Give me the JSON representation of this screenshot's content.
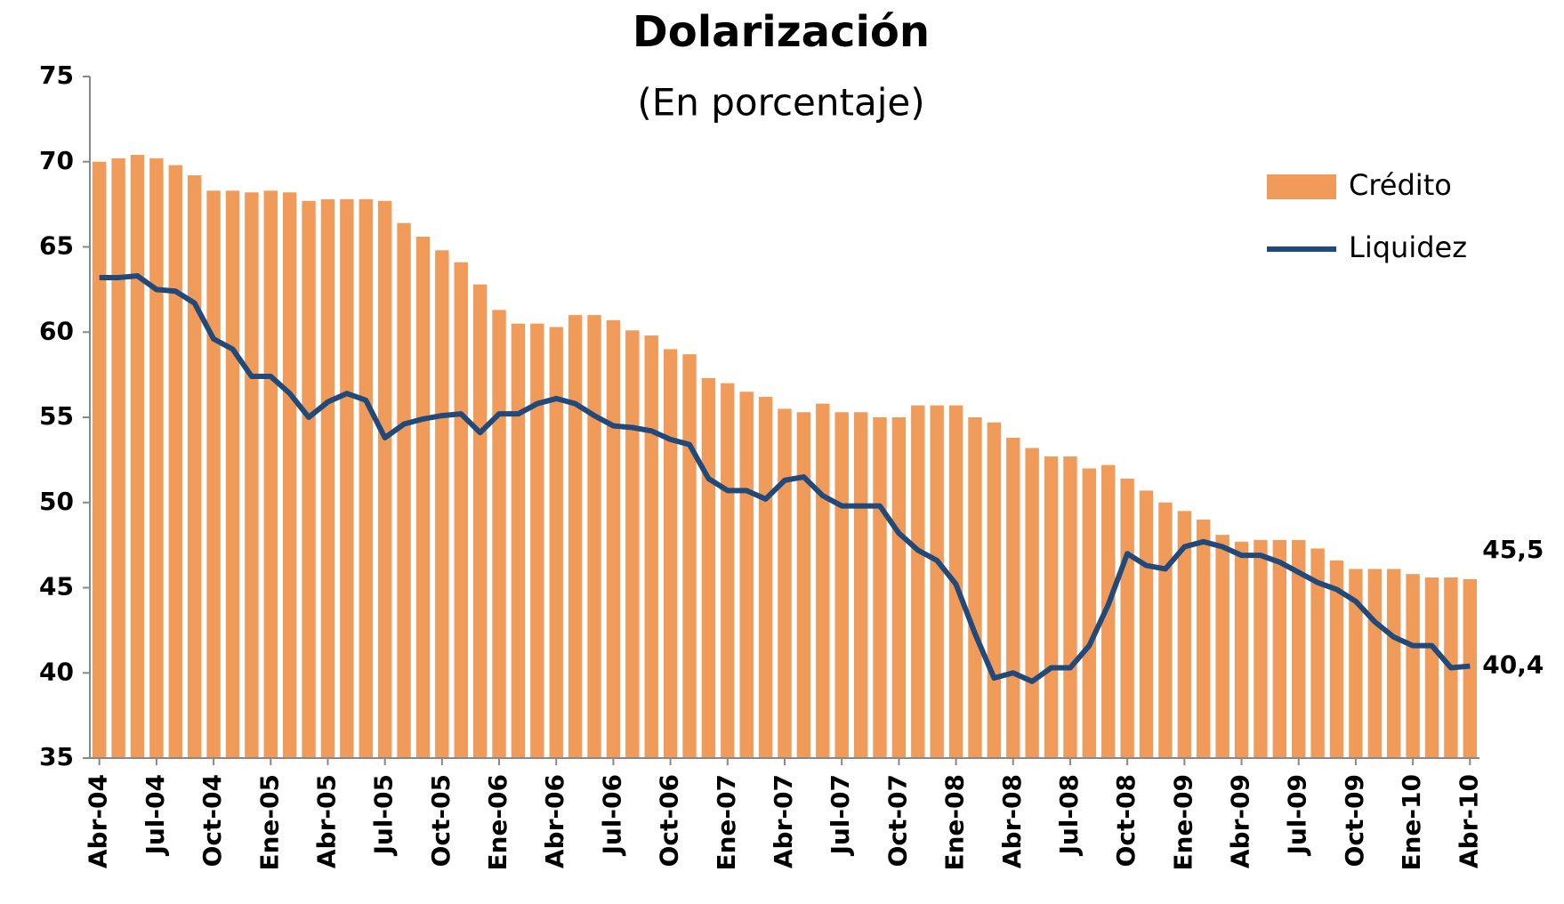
{
  "chart_data": {
    "type": "bar_line",
    "title": "Dolarización",
    "subtitle": "(En porcentaje)",
    "categories": [
      "Abr-04",
      null,
      null,
      "Jul-04",
      null,
      null,
      "Oct-04",
      null,
      null,
      "Ene-05",
      null,
      null,
      "Abr-05",
      null,
      null,
      "Jul-05",
      null,
      null,
      "Oct-05",
      null,
      null,
      "Ene-06",
      null,
      null,
      "Abr-06",
      null,
      null,
      "Jul-06",
      null,
      null,
      "Oct-06",
      null,
      null,
      "Ene-07",
      null,
      null,
      "Abr-07",
      null,
      null,
      "Jul-07",
      null,
      null,
      "Oct-07",
      null,
      null,
      "Ene-08",
      null,
      null,
      "Abr-08",
      null,
      null,
      "Jul-08",
      null,
      null,
      "Oct-08",
      null,
      null,
      "Ene-09",
      null,
      null,
      "Abr-09",
      null,
      null,
      "Jul-09",
      null,
      null,
      "Oct-09",
      null,
      null,
      "Ene-10",
      null,
      null,
      "Abr-10"
    ],
    "series": [
      {
        "name": "Crédito",
        "type": "bar",
        "color": "#f09b59",
        "values": [
          70.0,
          70.2,
          70.4,
          70.2,
          69.8,
          69.2,
          68.3,
          68.3,
          68.2,
          68.3,
          68.2,
          67.7,
          67.8,
          67.8,
          67.8,
          67.7,
          66.4,
          65.6,
          64.8,
          64.1,
          62.8,
          61.3,
          60.5,
          60.5,
          60.3,
          61.0,
          61.0,
          60.7,
          60.1,
          59.8,
          59.0,
          58.7,
          57.3,
          57.0,
          56.5,
          56.2,
          55.5,
          55.3,
          55.8,
          55.3,
          55.3,
          55.0,
          55.0,
          55.7,
          55.7,
          55.7,
          55.0,
          54.7,
          53.8,
          53.2,
          52.7,
          52.7,
          52.0,
          52.2,
          51.4,
          50.7,
          50.0,
          49.5,
          49.0,
          48.1,
          47.7,
          47.8,
          47.8,
          47.8,
          47.3,
          46.6,
          46.1,
          46.1,
          46.1,
          45.8,
          45.6,
          45.6,
          45.5
        ],
        "value_labels": [
          null,
          null,
          null,
          null,
          null,
          null,
          null,
          null,
          null,
          null,
          null,
          null,
          null,
          null,
          null,
          null,
          null,
          null,
          null,
          null,
          null,
          null,
          null,
          null,
          null,
          null,
          null,
          null,
          null,
          null,
          null,
          null,
          null,
          null,
          null,
          null,
          null,
          null,
          null,
          null,
          null,
          null,
          null,
          null,
          null,
          null,
          null,
          null,
          null,
          null,
          null,
          null,
          null,
          null,
          null,
          null,
          null,
          null,
          null,
          null,
          null,
          null,
          null,
          null,
          null,
          null,
          null,
          null,
          null,
          null,
          null,
          null,
          "45,5"
        ]
      },
      {
        "name": "Liquidez",
        "type": "line",
        "color": "#21497a",
        "values": [
          63.2,
          63.2,
          63.3,
          62.5,
          62.4,
          61.7,
          59.6,
          59.0,
          57.4,
          57.4,
          56.4,
          55.0,
          55.9,
          56.4,
          56.0,
          53.8,
          54.6,
          54.9,
          55.1,
          55.2,
          54.1,
          55.2,
          55.2,
          55.8,
          56.1,
          55.8,
          55.1,
          54.5,
          54.4,
          54.2,
          53.7,
          53.4,
          51.4,
          50.7,
          50.7,
          50.2,
          51.3,
          51.5,
          50.4,
          49.8,
          49.8,
          49.8,
          48.2,
          47.2,
          46.6,
          45.2,
          42.3,
          39.7,
          40.0,
          39.5,
          40.3,
          40.3,
          41.6,
          44.0,
          47.0,
          46.3,
          46.1,
          47.4,
          47.7,
          47.4,
          46.9,
          46.9,
          46.5,
          45.9,
          45.3,
          44.9,
          44.2,
          43.0,
          42.1,
          41.6,
          41.6,
          40.3,
          40.4
        ],
        "value_labels": [
          null,
          null,
          null,
          null,
          null,
          null,
          null,
          null,
          null,
          null,
          null,
          null,
          null,
          null,
          null,
          null,
          null,
          null,
          null,
          null,
          null,
          null,
          null,
          null,
          null,
          null,
          null,
          null,
          null,
          null,
          null,
          null,
          null,
          null,
          null,
          null,
          null,
          null,
          null,
          null,
          null,
          null,
          null,
          null,
          null,
          null,
          null,
          null,
          null,
          null,
          null,
          null,
          null,
          null,
          null,
          null,
          null,
          null,
          null,
          null,
          null,
          null,
          null,
          null,
          null,
          null,
          null,
          null,
          null,
          null,
          null,
          null,
          "40,4"
        ]
      }
    ],
    "ylim": [
      35,
      75
    ],
    "yticks": [
      35,
      40,
      45,
      50,
      55,
      60,
      65,
      70,
      75
    ],
    "grid": false,
    "legend": "top-right"
  }
}
